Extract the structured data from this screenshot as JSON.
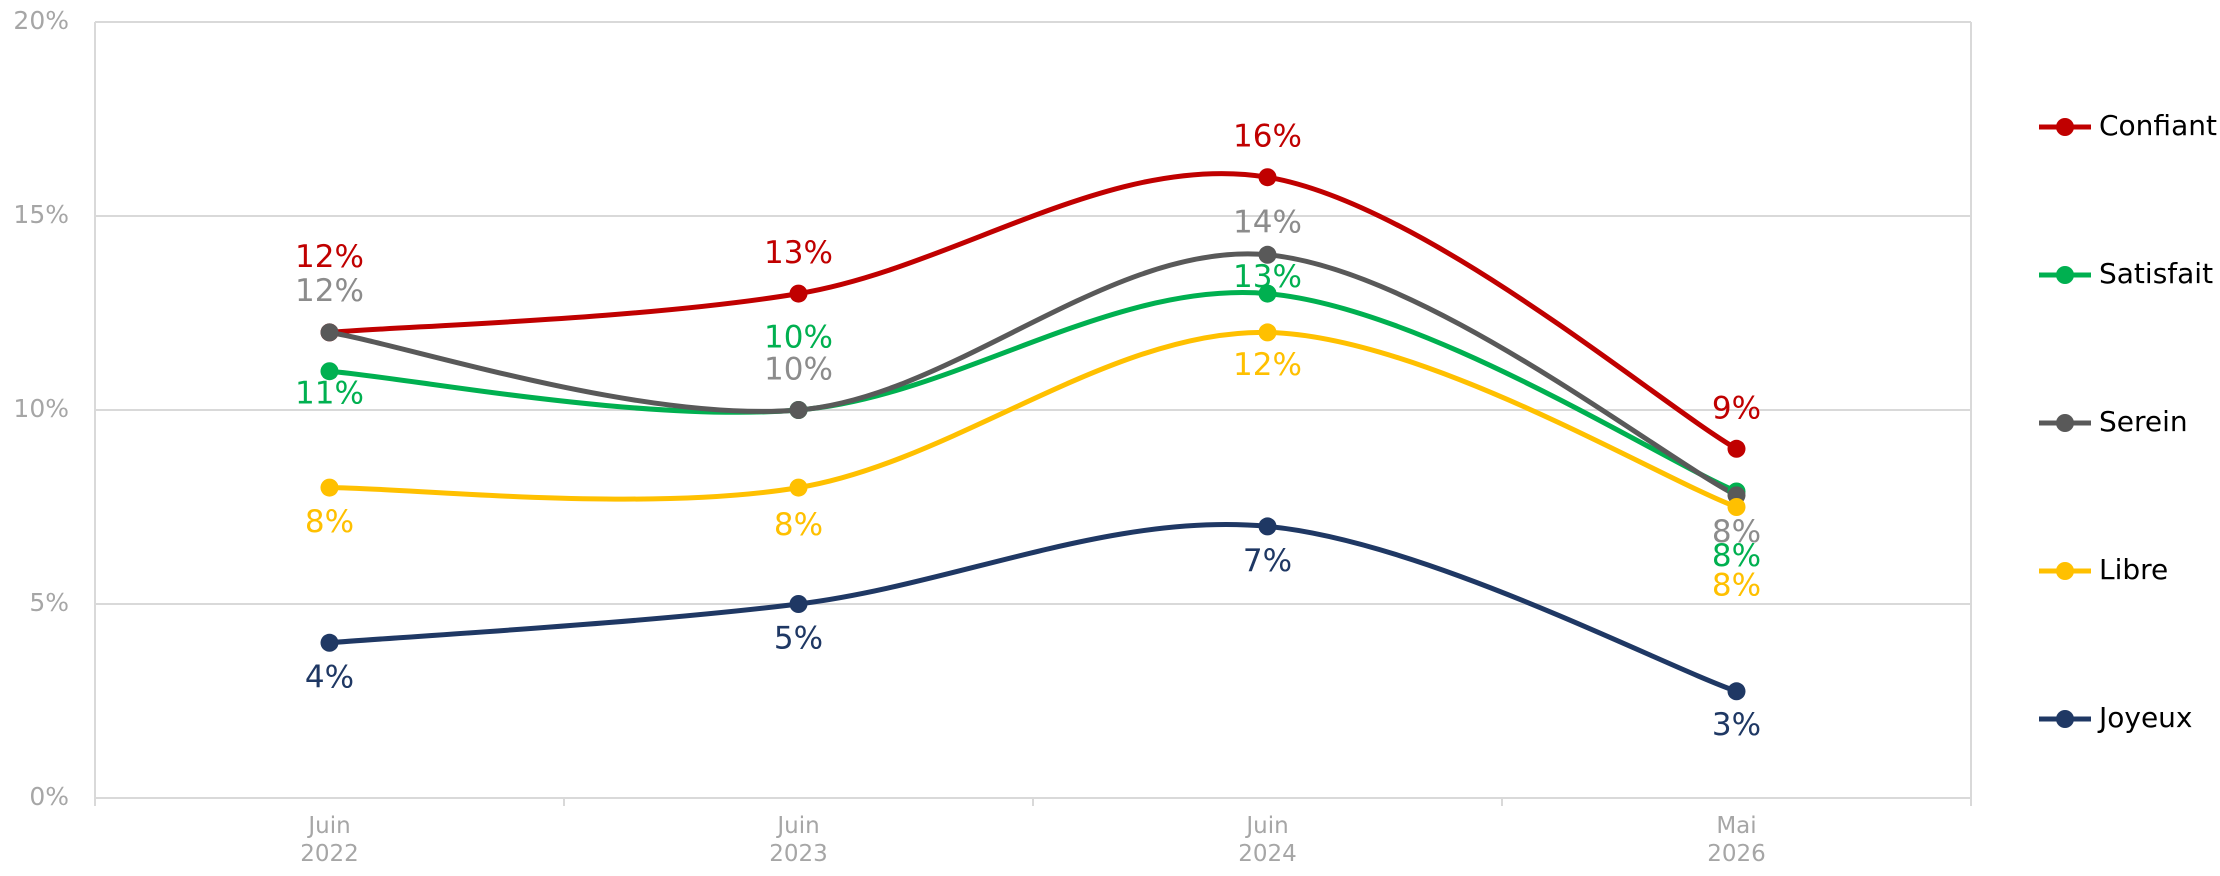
{
  "chart_data": {
    "type": "line",
    "categories": [
      "Juin 2022",
      "Juin 2023",
      "Juin 2024",
      "Mai 2026"
    ],
    "series": [
      {
        "name": "Confiant",
        "color": "#c00000",
        "values": [
          12,
          13,
          16,
          9
        ],
        "value_labels": [
          "12%",
          "13%",
          "16%",
          "9%"
        ]
      },
      {
        "name": "Satisfait",
        "color": "#00b050",
        "values": [
          11,
          10,
          13,
          7.9
        ],
        "value_labels": [
          "11%",
          "10%",
          "13%",
          "8%"
        ]
      },
      {
        "name": "Serein",
        "color": "#595959",
        "values": [
          12,
          10,
          14,
          7.8
        ],
        "value_labels": [
          "12%",
          "10%",
          "14%",
          "8%"
        ]
      },
      {
        "name": "Libre",
        "color": "#ffc000",
        "values": [
          8,
          8,
          12,
          7.5
        ],
        "value_labels": [
          "8%",
          "8%",
          "12%",
          "8%"
        ]
      },
      {
        "name": "Joyeux",
        "color": "#1f3864",
        "values": [
          4,
          5,
          7,
          2.75
        ],
        "value_labels": [
          "4%",
          "5%",
          "7%",
          "3%"
        ]
      }
    ],
    "ylim": [
      0,
      20
    ],
    "yticks": [
      {
        "value": 0,
        "label": "0%"
      },
      {
        "value": 5,
        "label": "5%"
      },
      {
        "value": 10,
        "label": "10%"
      },
      {
        "value": 15,
        "label": "15%"
      },
      {
        "value": 20,
        "label": "20%"
      }
    ],
    "grid": true,
    "legend": "right"
  }
}
